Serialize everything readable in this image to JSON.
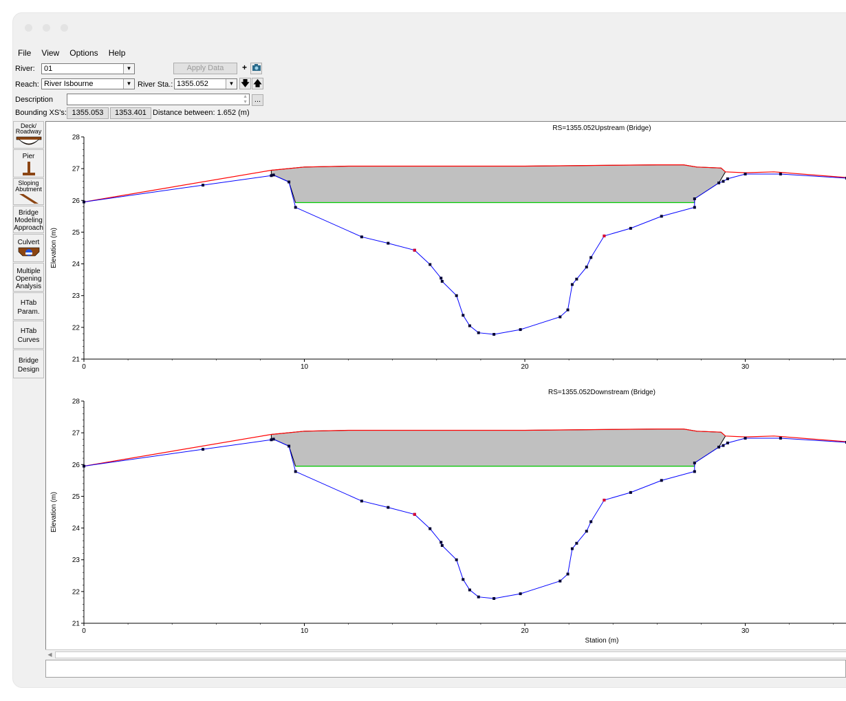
{
  "menu": [
    "File",
    "View",
    "Options",
    "Help"
  ],
  "toolbar": {
    "river_label": "River:",
    "river_value": "01",
    "reach_label": "Reach:",
    "reach_value": "River Isbourne",
    "river_sta_label": "River Sta.:",
    "river_sta_value": "1355.052",
    "apply_data": "Apply Data",
    "description_label": "Description",
    "description_value": "",
    "ellipsis": "...",
    "bounding_label": "Bounding XS's:",
    "bounding_1": "1355.053",
    "bounding_2": "1353.401",
    "distance_text": "Distance between: 1.652 (m)"
  },
  "sidebar": [
    {
      "label": "Deck/\nRoadway",
      "icon": "deck-roadway-icon"
    },
    {
      "label": "Pier",
      "icon": "pier-icon"
    },
    {
      "label": "Sloping\nAbutment",
      "icon": "sloping-abutment-icon"
    },
    {
      "label": "Bridge\nModeling\nApproach",
      "icon": ""
    },
    {
      "label": "Culvert",
      "icon": "culvert-icon"
    },
    {
      "label": "Multiple\nOpening\nAnalysis",
      "icon": ""
    },
    {
      "label": "HTab\nParam.",
      "icon": ""
    },
    {
      "label": "HTab\nCurves",
      "icon": ""
    },
    {
      "label": "Bridge\nDesign",
      "icon": ""
    }
  ],
  "colors": {
    "ground": "#0000ff",
    "deck": "#ff0000",
    "low_chord": "#00cc00",
    "fill": "#c0c0c0",
    "outline": "#000000"
  },
  "chart_data": [
    {
      "type": "line",
      "title": "RS=1355.052Upstream  (Bridge)",
      "xlabel": "",
      "ylabel": "Elevation (m)",
      "xlim": [
        0,
        34.6
      ],
      "ylim": [
        21,
        28
      ],
      "x_ticks": [
        "0",
        "10",
        "20",
        "30"
      ],
      "y_ticks": [
        "21",
        "22",
        "23",
        "24",
        "25",
        "26",
        "27",
        "28"
      ],
      "ground": [
        [
          0,
          25.95
        ],
        [
          5.4,
          26.48
        ],
        [
          8.5,
          26.78
        ],
        [
          8.6,
          26.8
        ],
        [
          9.3,
          26.58
        ],
        [
          9.6,
          25.78
        ],
        [
          12.6,
          24.85
        ],
        [
          13.8,
          24.65
        ],
        [
          15.0,
          24.43
        ],
        [
          15.7,
          23.98
        ],
        [
          16.2,
          23.55
        ],
        [
          16.25,
          23.45
        ],
        [
          16.9,
          23.0
        ],
        [
          17.2,
          22.38
        ],
        [
          17.5,
          22.05
        ],
        [
          17.9,
          21.83
        ],
        [
          18.6,
          21.78
        ],
        [
          19.8,
          21.93
        ],
        [
          21.6,
          22.33
        ],
        [
          21.95,
          22.55
        ],
        [
          22.15,
          23.35
        ],
        [
          22.35,
          23.52
        ],
        [
          22.8,
          23.9
        ],
        [
          23.0,
          24.2
        ],
        [
          23.6,
          24.88
        ],
        [
          24.8,
          25.12
        ],
        [
          26.2,
          25.5
        ],
        [
          27.7,
          25.78
        ],
        [
          27.7,
          26.05
        ],
        [
          28.8,
          26.55
        ],
        [
          29.0,
          26.6
        ],
        [
          29.2,
          26.68
        ],
        [
          30.0,
          26.83
        ],
        [
          31.6,
          26.83
        ],
        [
          34.6,
          26.7
        ]
      ],
      "red_points": [
        [
          15.0,
          24.43
        ],
        [
          23.6,
          24.88
        ]
      ],
      "deck_top": [
        [
          0,
          25.95
        ],
        [
          8.5,
          26.95
        ],
        [
          10.0,
          27.05
        ],
        [
          12.0,
          27.08
        ],
        [
          20.0,
          27.08
        ],
        [
          26.0,
          27.12
        ],
        [
          27.2,
          27.12
        ],
        [
          27.8,
          27.05
        ],
        [
          28.9,
          27.02
        ],
        [
          29.1,
          26.9
        ],
        [
          30.0,
          26.87
        ],
        [
          31.3,
          26.9
        ],
        [
          34.6,
          26.72
        ]
      ],
      "low_chord": [
        [
          9.6,
          25.93
        ],
        [
          27.7,
          25.93
        ]
      ],
      "fill_poly": [
        [
          8.5,
          26.95
        ],
        [
          10.0,
          27.05
        ],
        [
          12.0,
          27.08
        ],
        [
          20.0,
          27.08
        ],
        [
          26.0,
          27.12
        ],
        [
          27.2,
          27.12
        ],
        [
          27.8,
          27.05
        ],
        [
          28.9,
          27.02
        ],
        [
          29.1,
          26.9
        ],
        [
          28.8,
          26.55
        ],
        [
          27.7,
          26.05
        ],
        [
          27.7,
          25.93
        ],
        [
          9.6,
          25.93
        ],
        [
          9.3,
          26.58
        ],
        [
          8.6,
          26.8
        ],
        [
          8.5,
          26.78
        ]
      ]
    },
    {
      "type": "line",
      "title": "RS=1355.052Downstream  (Bridge)",
      "xlabel": "Station (m)",
      "ylabel": "Elevation (m)",
      "xlim": [
        0,
        34.6
      ],
      "ylim": [
        21,
        28
      ],
      "x_ticks": [
        "0",
        "10",
        "20",
        "30"
      ],
      "y_ticks": [
        "21",
        "22",
        "23",
        "24",
        "25",
        "26",
        "27",
        "28"
      ],
      "ground": [
        [
          0,
          25.95
        ],
        [
          5.4,
          26.48
        ],
        [
          8.5,
          26.78
        ],
        [
          8.6,
          26.8
        ],
        [
          9.3,
          26.58
        ],
        [
          9.6,
          25.78
        ],
        [
          12.6,
          24.85
        ],
        [
          13.8,
          24.65
        ],
        [
          15.0,
          24.43
        ],
        [
          15.7,
          23.98
        ],
        [
          16.2,
          23.55
        ],
        [
          16.25,
          23.45
        ],
        [
          16.9,
          23.0
        ],
        [
          17.2,
          22.38
        ],
        [
          17.5,
          22.05
        ],
        [
          17.9,
          21.83
        ],
        [
          18.6,
          21.78
        ],
        [
          19.8,
          21.93
        ],
        [
          21.6,
          22.33
        ],
        [
          21.95,
          22.55
        ],
        [
          22.15,
          23.35
        ],
        [
          22.35,
          23.52
        ],
        [
          22.8,
          23.9
        ],
        [
          23.0,
          24.2
        ],
        [
          23.6,
          24.88
        ],
        [
          24.8,
          25.12
        ],
        [
          26.2,
          25.5
        ],
        [
          27.7,
          25.78
        ],
        [
          27.7,
          26.05
        ],
        [
          28.8,
          26.55
        ],
        [
          29.0,
          26.6
        ],
        [
          29.2,
          26.68
        ],
        [
          30.0,
          26.83
        ],
        [
          31.6,
          26.83
        ],
        [
          34.6,
          26.7
        ]
      ],
      "red_points": [
        [
          15.0,
          24.43
        ],
        [
          23.6,
          24.88
        ]
      ],
      "deck_top": [
        [
          0,
          25.95
        ],
        [
          8.5,
          26.95
        ],
        [
          10.0,
          27.05
        ],
        [
          12.0,
          27.08
        ],
        [
          20.0,
          27.08
        ],
        [
          26.0,
          27.12
        ],
        [
          27.2,
          27.12
        ],
        [
          27.8,
          27.05
        ],
        [
          28.9,
          27.02
        ],
        [
          29.1,
          26.9
        ],
        [
          30.0,
          26.87
        ],
        [
          31.3,
          26.9
        ],
        [
          34.6,
          26.72
        ]
      ],
      "low_chord": [
        [
          9.6,
          25.95
        ],
        [
          27.7,
          25.95
        ]
      ],
      "fill_poly": [
        [
          8.5,
          26.95
        ],
        [
          10.0,
          27.05
        ],
        [
          12.0,
          27.08
        ],
        [
          20.0,
          27.08
        ],
        [
          26.0,
          27.12
        ],
        [
          27.2,
          27.12
        ],
        [
          27.8,
          27.05
        ],
        [
          28.9,
          27.02
        ],
        [
          29.1,
          26.9
        ],
        [
          28.8,
          26.55
        ],
        [
          27.7,
          26.05
        ],
        [
          27.7,
          25.95
        ],
        [
          9.6,
          25.95
        ],
        [
          9.3,
          26.58
        ],
        [
          8.6,
          26.8
        ],
        [
          8.5,
          26.78
        ]
      ]
    }
  ]
}
